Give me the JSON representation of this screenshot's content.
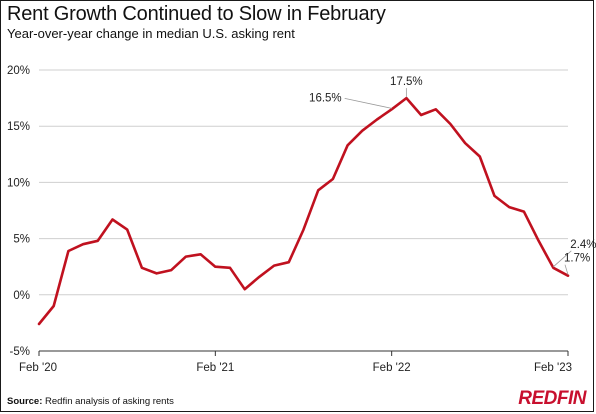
{
  "title": "Rent Growth Continued to Slow in February",
  "subtitle": "Year-over-year change in median U.S. asking rent",
  "source_label": "Source:",
  "source_text": " Redfin analysis of asking rents",
  "logo_text": "REDFIN",
  "colors": {
    "line": "#c0111f",
    "grid": "#cfcfcf",
    "brand": "#c8102e"
  },
  "chart_data": {
    "type": "line",
    "title": "Rent Growth Continued to Slow in February",
    "subtitle": "Year-over-year change in median U.S. asking rent",
    "xlabel": "",
    "ylabel": "",
    "ylim": [
      -5,
      20
    ],
    "yticks": [
      20,
      15,
      10,
      5,
      0,
      -5
    ],
    "ytick_labels": [
      "20%",
      "15%",
      "10%",
      "5%",
      "0%",
      "-5%"
    ],
    "xtick_labels": [
      {
        "label": "Feb '20",
        "index": 0
      },
      {
        "label": "Feb '21",
        "index": 12
      },
      {
        "label": "Feb '22",
        "index": 24
      },
      {
        "label": "Feb '23",
        "index": 36
      }
    ],
    "grid": true,
    "x": [
      "2020-02",
      "2020-03",
      "2020-04",
      "2020-05",
      "2020-06",
      "2020-07",
      "2020-08",
      "2020-09",
      "2020-10",
      "2020-11",
      "2020-12",
      "2021-01",
      "2021-02",
      "2021-03",
      "2021-04",
      "2021-05",
      "2021-06",
      "2021-07",
      "2021-08",
      "2021-09",
      "2021-10",
      "2021-11",
      "2021-12",
      "2022-01",
      "2022-02",
      "2022-03",
      "2022-04",
      "2022-05",
      "2022-06",
      "2022-07",
      "2022-08",
      "2022-09",
      "2022-10",
      "2022-11",
      "2022-12",
      "2023-01",
      "2023-02"
    ],
    "series": [
      {
        "values": [
          -2.6,
          -1.0,
          3.9,
          4.5,
          4.8,
          6.7,
          5.8,
          2.4,
          1.9,
          2.2,
          3.4,
          3.6,
          2.5,
          2.4,
          0.5,
          1.6,
          2.6,
          2.9,
          5.8,
          9.3,
          10.3,
          13.3,
          14.6,
          15.6,
          16.5,
          17.5,
          16.0,
          16.5,
          15.2,
          13.5,
          12.3,
          8.8,
          7.8,
          7.4,
          4.8,
          2.4,
          1.7
        ]
      }
    ],
    "annotations": [
      {
        "label": "16.5%",
        "index": 24
      },
      {
        "label": "17.5%",
        "index": 25
      },
      {
        "label": "2.4%",
        "index": 35
      },
      {
        "label": "1.7%",
        "index": 36
      }
    ]
  }
}
